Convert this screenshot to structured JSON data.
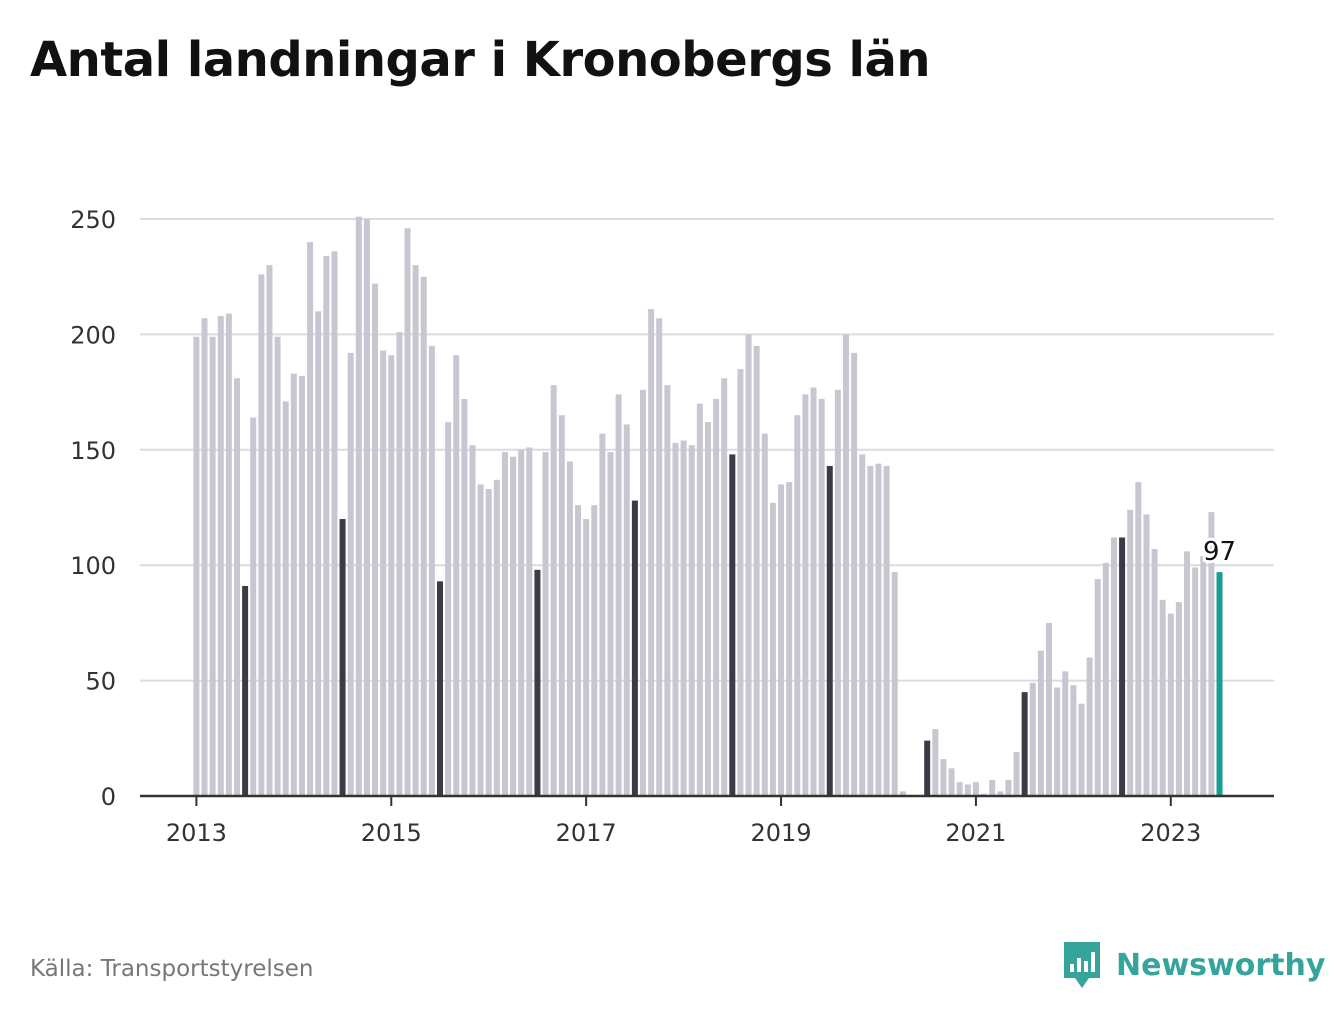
{
  "title": "Antal landningar i Kronobergs län",
  "source": "Källa: Transportstyrelsen",
  "brand": {
    "name": "Newsworthy",
    "icon": "newsworthy-logo-icon",
    "color": "#35a49b"
  },
  "colors": {
    "bar": "#c7c7d1",
    "july": "#3b3a47",
    "latest": "#1a9e94",
    "grid": "#dcdcdc",
    "axis": "#333333"
  },
  "chart_data": {
    "type": "bar",
    "title": "Antal landningar i Kronobergs län",
    "xlabel": "",
    "ylabel": "",
    "ylim": [
      0,
      250
    ],
    "yticks": [
      0,
      50,
      100,
      150,
      200,
      250
    ],
    "xticks": [
      "2013",
      "2015",
      "2017",
      "2019",
      "2021",
      "2023"
    ],
    "start": "2013-01",
    "end": "2023-07",
    "grid": true,
    "legend": "none",
    "highlight": "July of each year in dark; latest month (2023-07) in teal with value label",
    "annotations": [
      {
        "period": "2023-07",
        "text": "97"
      }
    ],
    "years": [
      {
        "year": "2013",
        "values": [
          199,
          207,
          199,
          208,
          209,
          181,
          91,
          164,
          226,
          230,
          199,
          171
        ]
      },
      {
        "year": "2014",
        "values": [
          183,
          182,
          240,
          210,
          234,
          236,
          120,
          192,
          251,
          250,
          222,
          193
        ]
      },
      {
        "year": "2015",
        "values": [
          191,
          201,
          246,
          230,
          225,
          195,
          93,
          162,
          191,
          172,
          152,
          135
        ]
      },
      {
        "year": "2016",
        "values": [
          133,
          137,
          149,
          147,
          150,
          151,
          98,
          149,
          178,
          165,
          145,
          126
        ]
      },
      {
        "year": "2017",
        "values": [
          120,
          126,
          157,
          149,
          174,
          161,
          128,
          176,
          211,
          207,
          178,
          153
        ]
      },
      {
        "year": "2018",
        "values": [
          154,
          152,
          170,
          162,
          172,
          181,
          148,
          185,
          200,
          195,
          157,
          127
        ]
      },
      {
        "year": "2019",
        "values": [
          135,
          136,
          165,
          174,
          177,
          172,
          143,
          176,
          200,
          192,
          148,
          143
        ]
      },
      {
        "year": "2020",
        "values": [
          144,
          143,
          97,
          2,
          0,
          0,
          24,
          29,
          16,
          12,
          6,
          5
        ]
      },
      {
        "year": "2021",
        "values": [
          6,
          1,
          7,
          2,
          7,
          19,
          45,
          49,
          63,
          75,
          47,
          54
        ]
      },
      {
        "year": "2022",
        "values": [
          48,
          40,
          60,
          94,
          101,
          112,
          112,
          124,
          136,
          122,
          107,
          85
        ]
      },
      {
        "year": "2023",
        "values": [
          79,
          84,
          106,
          99,
          104,
          123,
          97
        ]
      }
    ]
  }
}
